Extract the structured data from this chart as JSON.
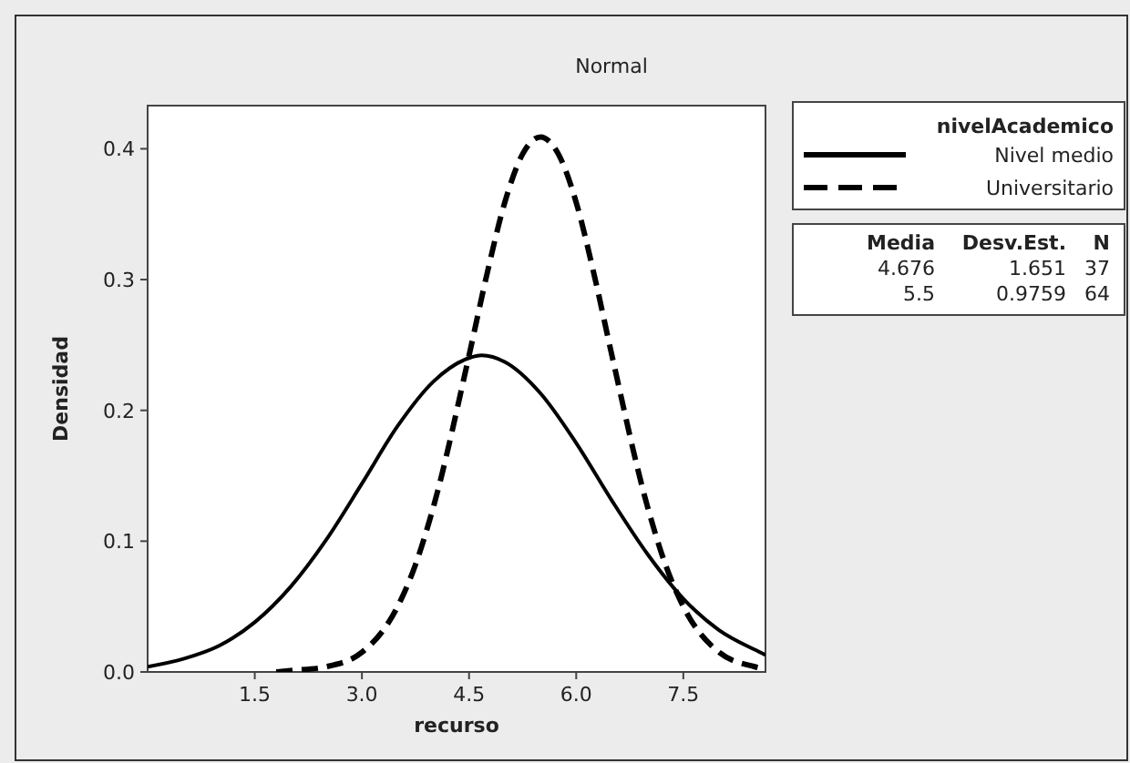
{
  "chart_data": {
    "type": "line",
    "title": "Normal",
    "xlabel": "recurso",
    "ylabel": "Densidad",
    "legend_title": "nivelAcademico",
    "legend": "right",
    "xlim": [
      0,
      8.65
    ],
    "xticks": [
      1.5,
      {
        "value": 3,
        "label": "3.0"
      },
      4.5,
      {
        "value": 6,
        "label": "6.0"
      },
      7.5
    ],
    "ylim": [
      0,
      0.433
    ],
    "yticks": [
      {
        "value": 0,
        "label": "0.0"
      },
      0.1,
      0.2,
      0.3,
      0.4
    ],
    "grid": false,
    "series": [
      {
        "name": "Nivel medio",
        "color": "#000000",
        "line_style": "solid",
        "x": [
          0,
          0.5,
          1,
          1.5,
          2,
          2.5,
          3,
          3.5,
          4,
          4.5,
          4.676,
          5,
          5.5,
          6,
          6.5,
          7,
          7.5,
          8,
          8.5,
          8.65
        ],
        "values": [
          0.004,
          0.01,
          0.02,
          0.038,
          0.065,
          0.101,
          0.144,
          0.188,
          0.222,
          0.24,
          0.242,
          0.237,
          0.213,
          0.175,
          0.131,
          0.09,
          0.056,
          0.032,
          0.017,
          0.013
        ]
      },
      {
        "name": "Universitario",
        "color": "#000000",
        "line_style": "dashed",
        "x": [
          1.8,
          2,
          2.5,
          3,
          3.5,
          3.75,
          4,
          4.5,
          4.75,
          5,
          5.25,
          5.5,
          5.75,
          6,
          6.25,
          6.5,
          7,
          7.25,
          7.5,
          8,
          8.5,
          8.65
        ],
        "values": [
          0.0,
          0.001,
          0.004,
          0.015,
          0.05,
          0.082,
          0.126,
          0.242,
          0.304,
          0.359,
          0.396,
          0.409,
          0.396,
          0.359,
          0.304,
          0.242,
          0.126,
          0.082,
          0.05,
          0.015,
          0.004,
          0.002
        ]
      }
    ],
    "annotations": [
      "Media",
      "Desv.Est.",
      "N",
      "4.676",
      "1.651",
      "37",
      "5.5",
      "0.9759",
      "64"
    ]
  }
}
